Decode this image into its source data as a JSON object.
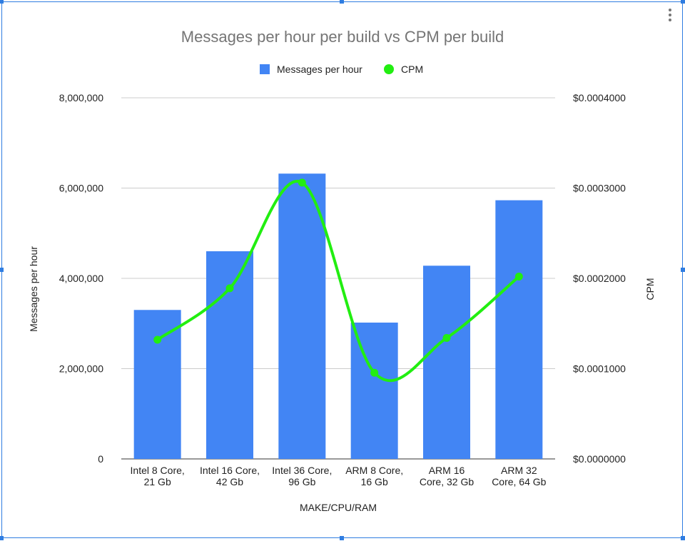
{
  "chart_data": {
    "type": "bar",
    "title": "Messages per hour per build vs CPM per build",
    "xlabel": "MAKE/CPU/RAM",
    "ylabel": "Messages per hour",
    "y2label": "CPM",
    "categories": [
      [
        "Intel 8 Core,",
        "21 Gb"
      ],
      [
        "Intel 16 Core,",
        "42 Gb"
      ],
      [
        "Intel 36 Core,",
        "96 Gb"
      ],
      [
        "ARM 8 Core,",
        "16 Gb"
      ],
      [
        "ARM 16",
        "Core, 32 Gb"
      ],
      [
        "ARM 32",
        "Core, 64 Gb"
      ]
    ],
    "ylim": [
      0,
      8000000
    ],
    "y_ticks": [
      "0",
      "2,000,000",
      "4,000,000",
      "6,000,000",
      "8,000,000"
    ],
    "y2lim": [
      0,
      0.0004
    ],
    "y2_ticks": [
      "$0.0000000",
      "$0.0001000",
      "$0.0002000",
      "$0.0003000",
      "$0.0004000"
    ],
    "grid": true,
    "legend_position": "top",
    "series": [
      {
        "name": "Messages per hour",
        "type": "bar",
        "axis": "left",
        "color": "#4285f4",
        "values": [
          3300000,
          4600000,
          6320000,
          3020000,
          4280000,
          5730000
        ]
      },
      {
        "name": "CPM",
        "type": "line",
        "axis": "right",
        "color": "#22ee11",
        "smooth": true,
        "values": [
          0.000132,
          0.000189,
          0.000306,
          9.55e-05,
          0.000134,
          0.000202
        ]
      }
    ]
  }
}
